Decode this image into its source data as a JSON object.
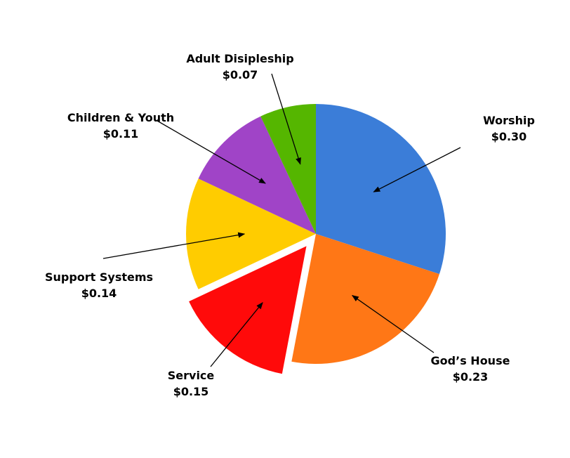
{
  "chart_data": {
    "type": "pie",
    "title": "",
    "start_angle_deg": 0,
    "direction": "clockwise",
    "exploded": [
      "Service"
    ],
    "slices": [
      {
        "label": "Worship",
        "value": 0.3,
        "value_label": "$0.30",
        "color": "#3B7DD8"
      },
      {
        "label": "God’s House",
        "value": 0.23,
        "value_label": "$0.23",
        "color": "#FF7716"
      },
      {
        "label": "Service",
        "value": 0.15,
        "value_label": "$0.15",
        "color": "#FF0A0A"
      },
      {
        "label": "Support Systems",
        "value": 0.14,
        "value_label": "$0.14",
        "color": "#FFCC00"
      },
      {
        "label": "Children & Youth",
        "value": 0.11,
        "value_label": "$0.11",
        "color": "#A044C7"
      },
      {
        "label": "Adult Disipleship",
        "value": 0.07,
        "value_label": "$0.07",
        "color": "#55B600"
      }
    ]
  }
}
